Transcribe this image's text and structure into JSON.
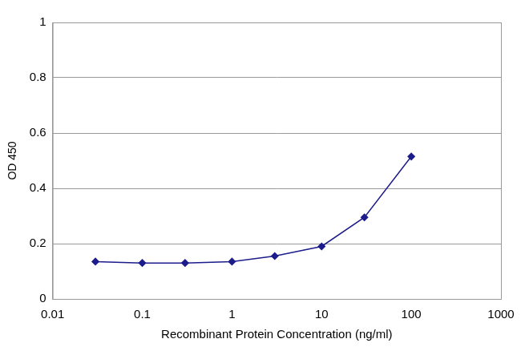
{
  "chart_data": {
    "type": "line",
    "x_label": "Recombinant Protein Concentration (ng/ml)",
    "y_label": "OD 450",
    "x": [
      0.03,
      0.1,
      0.3,
      1,
      3,
      10,
      30,
      100
    ],
    "values": [
      0.135,
      0.13,
      0.13,
      0.135,
      0.155,
      0.19,
      0.295,
      0.515
    ],
    "color": "#1c1c8c",
    "marker": "diamond",
    "line_style": "solid",
    "log": "x",
    "xlim": [
      0.01,
      1000
    ],
    "xticks": [
      0.01,
      0.1,
      1,
      10,
      100,
      1000
    ],
    "ylim": [
      0,
      1
    ],
    "yticks": [
      0,
      0.2,
      0.4,
      0.6,
      0.8,
      1
    ],
    "grid": true
  }
}
